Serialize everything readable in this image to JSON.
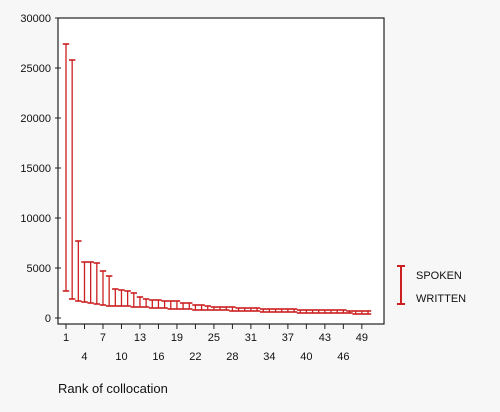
{
  "chart_data": {
    "type": "error-bar",
    "xlabel": "Rank of collocation",
    "ylabel": "",
    "ylim": [
      0,
      30000
    ],
    "xlim": [
      1,
      50
    ],
    "grid": false,
    "legend_position": "right",
    "series_color": "#cc1f1f",
    "y_ticks": [
      0,
      5000,
      10000,
      15000,
      20000,
      25000,
      30000
    ],
    "x_ticks_upper": [
      "1",
      "7",
      "13",
      "19",
      "25",
      "31",
      "37",
      "43",
      "49"
    ],
    "x_ticks_lower": [
      "4",
      "10",
      "16",
      "22",
      "28",
      "34",
      "40",
      "46"
    ],
    "legend": {
      "top_label": "SPOKEN",
      "bottom_label": "WRITTEN"
    },
    "x": [
      1,
      2,
      3,
      4,
      5,
      6,
      7,
      8,
      9,
      10,
      11,
      12,
      13,
      14,
      15,
      16,
      17,
      18,
      19,
      20,
      21,
      22,
      23,
      24,
      25,
      26,
      27,
      28,
      29,
      30,
      31,
      32,
      33,
      34,
      35,
      36,
      37,
      38,
      39,
      40,
      41,
      42,
      43,
      44,
      45,
      46,
      47,
      48,
      49,
      50
    ],
    "spoken": [
      27400,
      25800,
      7700,
      5600,
      5600,
      5500,
      4700,
      4200,
      2900,
      2800,
      2700,
      2500,
      2100,
      1900,
      1800,
      1800,
      1700,
      1700,
      1700,
      1500,
      1500,
      1300,
      1300,
      1200,
      1100,
      1100,
      1100,
      1100,
      1000,
      1000,
      1000,
      1000,
      900,
      900,
      900,
      900,
      900,
      900,
      800,
      800,
      800,
      800,
      800,
      800,
      800,
      800,
      700,
      700,
      700,
      700
    ],
    "written": [
      2700,
      1900,
      1700,
      1600,
      1500,
      1400,
      1300,
      1200,
      1200,
      1200,
      1200,
      1100,
      1100,
      1100,
      1000,
      1000,
      1000,
      900,
      900,
      900,
      900,
      800,
      800,
      800,
      800,
      800,
      800,
      700,
      700,
      700,
      700,
      700,
      600,
      600,
      600,
      600,
      600,
      600,
      500,
      500,
      500,
      500,
      500,
      500,
      500,
      500,
      500,
      400,
      400,
      400
    ]
  }
}
